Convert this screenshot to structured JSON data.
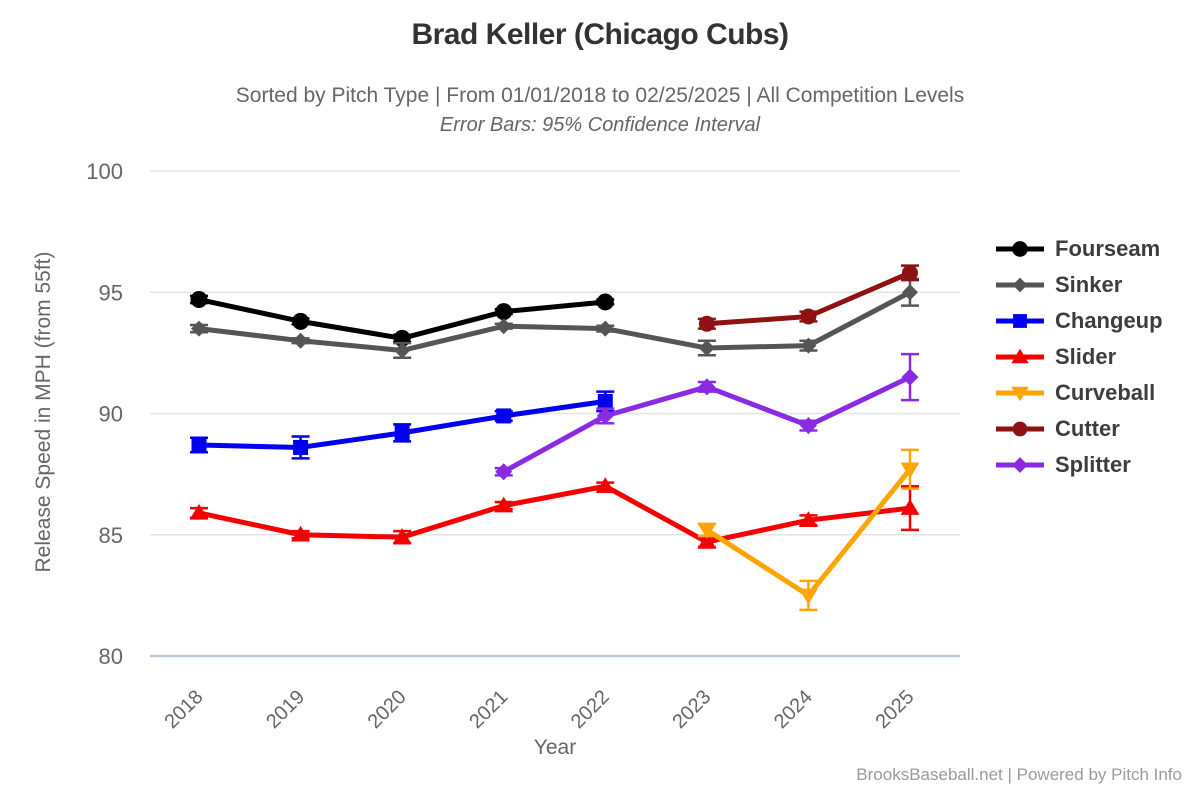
{
  "header": {
    "title": "Brad Keller (Chicago Cubs)",
    "subtitle": "Sorted by Pitch Type | From 01/01/2018 to 02/25/2025 | All Competition Levels",
    "note": "Error Bars: 95% Confidence Interval"
  },
  "footer": {
    "text": "BrooksBaseball.net | Powered by Pitch Info"
  },
  "chart_data": {
    "type": "line",
    "title": "Brad Keller (Chicago Cubs)",
    "xlabel": "Year",
    "ylabel": "Release Speed in MPH (from 55ft)",
    "x_categories": [
      "2018",
      "2019",
      "2020",
      "2021",
      "2022",
      "2023",
      "2024",
      "2025"
    ],
    "yticks": [
      100,
      95,
      90,
      85,
      80
    ],
    "ylim": [
      80,
      100
    ],
    "grid": true,
    "grid_color": "#e3e3e3",
    "baseline_color": "#b9c9e4",
    "tick_label_color": "#666666",
    "legend_position": "right",
    "error_bars_note": "95% Confidence Interval",
    "series": [
      {
        "name": "Fourseam",
        "color": "#000000",
        "marker": "circle",
        "marker_size": 8.5,
        "points": [
          {
            "year": 2018,
            "value": 94.7,
            "err": 0.15
          },
          {
            "year": 2019,
            "value": 93.8,
            "err": 0.12
          },
          {
            "year": 2020,
            "value": 93.1,
            "err": 0.15
          },
          {
            "year": 2021,
            "value": 94.2,
            "err": 0.1
          },
          {
            "year": 2022,
            "value": 94.6,
            "err": 0.1
          }
        ]
      },
      {
        "name": "Sinker",
        "color": "#555555",
        "marker": "diamond",
        "marker_size": 8,
        "points": [
          {
            "year": 2018,
            "value": 93.5,
            "err": 0.15
          },
          {
            "year": 2019,
            "value": 93.0,
            "err": 0.1
          },
          {
            "year": 2020,
            "value": 92.6,
            "err": 0.3
          },
          {
            "year": 2021,
            "value": 93.6,
            "err": 0.1
          },
          {
            "year": 2022,
            "value": 93.5,
            "err": 0.12
          },
          {
            "year": 2023,
            "value": 92.7,
            "err": 0.3
          },
          {
            "year": 2024,
            "value": 92.8,
            "err": 0.2
          },
          {
            "year": 2025,
            "value": 95.0,
            "err": 0.55
          }
        ]
      },
      {
        "name": "Changeup",
        "color": "#0000ee",
        "marker": "square",
        "marker_size": 7.5,
        "points": [
          {
            "year": 2018,
            "value": 88.7,
            "err": 0.3
          },
          {
            "year": 2019,
            "value": 88.6,
            "err": 0.45
          },
          {
            "year": 2020,
            "value": 89.2,
            "err": 0.35
          },
          {
            "year": 2021,
            "value": 89.9,
            "err": 0.2
          },
          {
            "year": 2022,
            "value": 90.5,
            "err": 0.4
          }
        ]
      },
      {
        "name": "Slider",
        "color": "#f40000",
        "marker": "triangle-up",
        "marker_size": 9,
        "points": [
          {
            "year": 2018,
            "value": 85.9,
            "err": 0.2
          },
          {
            "year": 2019,
            "value": 85.0,
            "err": 0.15
          },
          {
            "year": 2020,
            "value": 84.9,
            "err": 0.25
          },
          {
            "year": 2021,
            "value": 86.2,
            "err": 0.15
          },
          {
            "year": 2022,
            "value": 87.0,
            "err": 0.15
          },
          {
            "year": 2023,
            "value": 84.7,
            "err": 0.2
          },
          {
            "year": 2024,
            "value": 85.6,
            "err": 0.2
          },
          {
            "year": 2025,
            "value": 86.1,
            "err": 0.9
          }
        ]
      },
      {
        "name": "Curveball",
        "color": "#ffa502",
        "marker": "triangle-down",
        "marker_size": 9,
        "points": [
          {
            "year": 2023,
            "value": 85.2,
            "err": 0.25
          },
          {
            "year": 2024,
            "value": 82.5,
            "err": 0.6
          },
          {
            "year": 2025,
            "value": 87.7,
            "err": 0.8
          }
        ]
      },
      {
        "name": "Cutter",
        "color": "#8f1212",
        "marker": "circle",
        "marker_size": 8,
        "points": [
          {
            "year": 2023,
            "value": 93.7,
            "err": 0.2
          },
          {
            "year": 2024,
            "value": 94.0,
            "err": 0.2
          },
          {
            "year": 2025,
            "value": 95.8,
            "err": 0.3
          }
        ]
      },
      {
        "name": "Splitter",
        "color": "#8a2be2",
        "marker": "diamond",
        "marker_size": 8.5,
        "points": [
          {
            "year": 2021,
            "value": 87.6,
            "err": 0.15
          },
          {
            "year": 2022,
            "value": 89.9,
            "err": 0.3
          },
          {
            "year": 2023,
            "value": 91.1,
            "err": 0.2
          },
          {
            "year": 2024,
            "value": 89.5,
            "err": 0.2
          },
          {
            "year": 2025,
            "value": 91.5,
            "err": 0.95
          }
        ]
      }
    ]
  }
}
